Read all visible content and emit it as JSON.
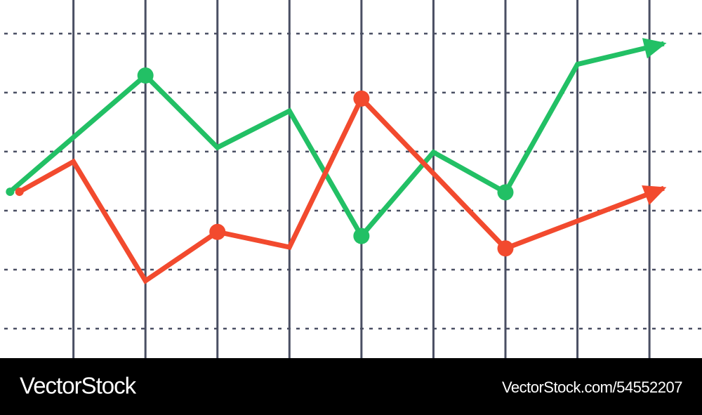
{
  "chart_data": {
    "type": "line",
    "xlim": [
      -0.02,
      9.73
    ],
    "ylim": [
      -0.5,
      5.57
    ],
    "xticks": [
      1,
      2,
      3,
      4,
      5,
      6,
      7,
      8,
      9
    ],
    "yticks": [
      0,
      1,
      2,
      3,
      4,
      5
    ],
    "grid": true,
    "arrow_end": true,
    "series": [
      {
        "color": "#22c065",
        "x": [
          0.12,
          2,
          3,
          4,
          5,
          6,
          7,
          8,
          9.2
        ],
        "values": [
          2.32,
          4.29,
          3.07,
          3.69,
          1.57,
          2.99,
          2.31,
          4.48,
          4.83
        ],
        "markers": [
          true,
          true,
          false,
          false,
          true,
          false,
          true,
          false,
          false
        ]
      },
      {
        "color": "#f24a2e",
        "x": [
          0.25,
          1,
          2,
          3,
          4,
          5,
          7,
          9.2
        ],
        "values": [
          2.32,
          2.83,
          0.81,
          1.64,
          1.38,
          3.9,
          1.36,
          2.38
        ],
        "markers": [
          true,
          false,
          false,
          true,
          false,
          true,
          true,
          false
        ]
      }
    ]
  },
  "watermark": {
    "left": "VectorStock",
    "right": "VectorStock.com/54552207"
  }
}
